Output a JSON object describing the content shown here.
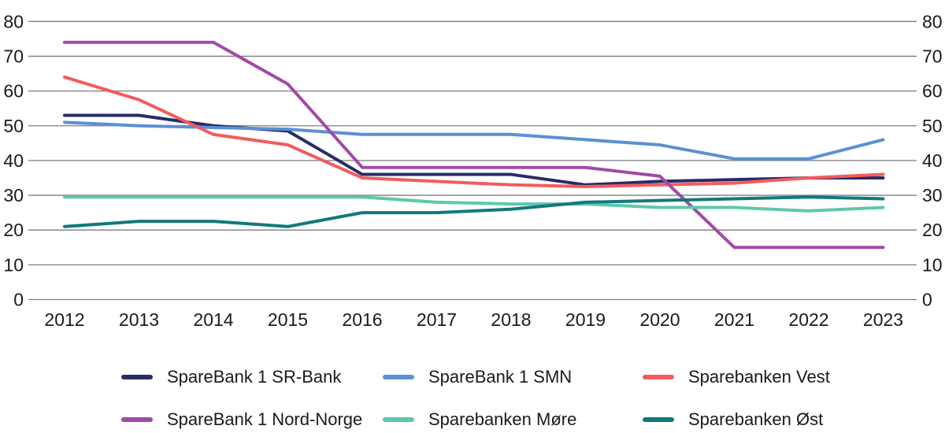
{
  "chart_data": {
    "type": "line",
    "title": "",
    "xlabel": "",
    "ylabel": "",
    "x": [
      2012,
      2013,
      2014,
      2015,
      2016,
      2017,
      2018,
      2019,
      2020,
      2021,
      2022,
      2023
    ],
    "x_labels": [
      "2012",
      "2013",
      "2014",
      "2015",
      "2016",
      "2017",
      "2018",
      "2019",
      "2020",
      "2021",
      "2022",
      "2023"
    ],
    "ylim": [
      0,
      80
    ],
    "y_ticks": [
      0,
      10,
      20,
      30,
      40,
      50,
      60,
      70,
      80
    ],
    "y_axis_sides": "both",
    "grid": "horizontal",
    "legend_position": "bottom",
    "legend_columns": 3,
    "series": [
      {
        "name": "SpareBank 1 SR-Bank",
        "color": "#272c67",
        "values": [
          53,
          53,
          50,
          48.5,
          36,
          36,
          36,
          33,
          34,
          34.5,
          35,
          35
        ]
      },
      {
        "name": "SpareBank 1 SMN",
        "color": "#5b90d5",
        "values": [
          51,
          50,
          49.5,
          49,
          47.5,
          47.5,
          47.5,
          46,
          44.5,
          40.5,
          40.5,
          46
        ]
      },
      {
        "name": "Sparebanken Vest",
        "color": "#f25c5c",
        "values": [
          64,
          57.5,
          47.5,
          44.5,
          35,
          34,
          33,
          32.5,
          33,
          33.5,
          35,
          36
        ]
      },
      {
        "name": "SpareBank 1 Nord-Norge",
        "color": "#a14aa6",
        "values": [
          74,
          74,
          74,
          62,
          38,
          38,
          38,
          38,
          35.5,
          15,
          15,
          15
        ]
      },
      {
        "name": "Sparebanken Møre",
        "color": "#5ec7ad",
        "values": [
          29.5,
          29.5,
          29.5,
          29.5,
          29.5,
          28,
          27.5,
          27.5,
          26.5,
          26.5,
          25.5,
          26.5
        ]
      },
      {
        "name": "Sparebanken Øst",
        "color": "#12797b",
        "values": [
          21,
          22.5,
          22.5,
          21,
          25,
          25,
          26,
          28,
          28.5,
          29,
          29.5,
          29
        ]
      }
    ],
    "colors": {
      "gridline": "#7d7d7d",
      "text": "#1a1a1a",
      "background": "#ffffff"
    }
  }
}
